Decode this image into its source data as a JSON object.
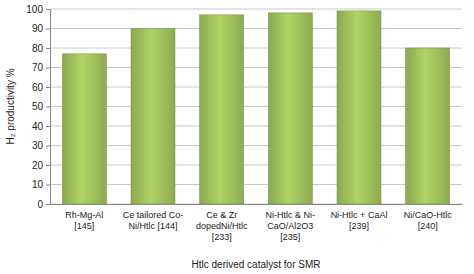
{
  "chart_data": {
    "type": "bar",
    "categories": [
      "Rh-Mg-Al\n[145]",
      "Ce tailored Co-\nNi/Htlc [144]",
      "Ce & Zr\ndopedNi/Htlc\n[233]",
      "Ni-Htlc & Ni-\nCaO/Al2O3\n[235]",
      "Ni-Htlc + CaAl\n[239]",
      "Ni/CaO-Htlc\n[240]"
    ],
    "values": [
      77,
      90,
      97,
      98,
      99,
      80
    ],
    "color": "#9bbb59",
    "xlabel": "Htlc derived catalyst for SMR",
    "ylabel": "H₂ productivity %",
    "ylim": [
      0,
      100
    ],
    "yticks": [
      0,
      10,
      20,
      30,
      40,
      50,
      60,
      70,
      80,
      90,
      100
    ],
    "grid": true
  }
}
